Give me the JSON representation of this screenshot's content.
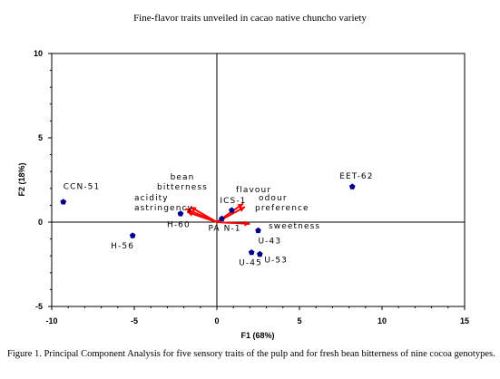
{
  "page": {
    "running_head": "Fine-flavor traits unveiled in cacao  native chuncho variety",
    "caption": "Figure 1. Principal Component Analysis for five sensory traits of the pulp and for fresh bean bitterness of nine cocoa genotypes."
  },
  "colors": {
    "points": "#00008b",
    "vectors": "#ff0000",
    "axes": "#000000"
  },
  "chart_data": {
    "type": "scatter",
    "title": "",
    "xlabel": "F1 (68%)",
    "ylabel": "F2 (18%)",
    "xlim": [
      -10,
      15
    ],
    "ylim": [
      -5,
      10
    ],
    "x_ticks": [
      "-10",
      "-5",
      "0",
      "5",
      "10",
      "15"
    ],
    "y_ticks": [
      "-5",
      "0",
      "5",
      "10"
    ],
    "grid": false,
    "points": [
      {
        "label": "CCN-51",
        "x": -9.3,
        "y": 1.2
      },
      {
        "label": "H-56",
        "x": -5.1,
        "y": -0.8
      },
      {
        "label": "H-60",
        "x": -2.2,
        "y": 0.5
      },
      {
        "label": "PA N-1",
        "x": 0.3,
        "y": 0.2
      },
      {
        "label": "ICS-1",
        "x": 0.9,
        "y": 0.7
      },
      {
        "label": "U-43",
        "x": 2.5,
        "y": -0.5
      },
      {
        "label": "U-45",
        "x": 2.1,
        "y": -1.8
      },
      {
        "label": "U-53",
        "x": 2.6,
        "y": -1.9
      },
      {
        "label": "EET-62",
        "x": 8.2,
        "y": 2.1
      }
    ],
    "vectors": [
      {
        "label": "bean bitterness",
        "x": -1.6,
        "y": 0.9
      },
      {
        "label": "acidity",
        "x": -1.9,
        "y": 0.8
      },
      {
        "label": "astringency",
        "x": -1.8,
        "y": 0.6
      },
      {
        "label": "flavour",
        "x": 1.6,
        "y": 1.1
      },
      {
        "label": "odour preference",
        "x": 1.7,
        "y": 0.9
      },
      {
        "label": "sweetness",
        "x": 2.0,
        "y": -0.1
      }
    ]
  }
}
